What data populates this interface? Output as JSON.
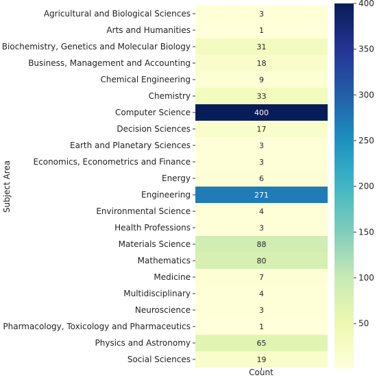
{
  "chart_data": {
    "type": "heatmap",
    "title": "",
    "ylabel": "Subject Area",
    "xlabel": "",
    "column_label": "Count",
    "categories": [
      "Agricultural and Biological Sciences",
      "Arts and Humanities",
      "Biochemistry, Genetics and Molecular Biology",
      "Business, Management and Accounting",
      "Chemical Engineering",
      "Chemistry",
      "Computer Science",
      "Decision Sciences",
      "Earth and Planetary Sciences",
      "Economics, Econometrics and Finance",
      "Energy",
      "Engineering",
      "Environmental Science",
      "Health Professions",
      "Materials Science",
      "Mathematics",
      "Medicine",
      "Multidisciplinary",
      "Neuroscience",
      "Pharmacology, Toxicology and Pharmaceutics",
      "Physics and Astronomy",
      "Social Sciences"
    ],
    "values": [
      3,
      1,
      31,
      18,
      9,
      33,
      400,
      17,
      3,
      3,
      6,
      271,
      4,
      3,
      88,
      80,
      7,
      4,
      3,
      1,
      65,
      19
    ],
    "colorbar": {
      "colormap": "YlGnBu",
      "range": [
        1,
        400
      ],
      "ticks": [
        50,
        100,
        150,
        200,
        250,
        300,
        350,
        400
      ]
    },
    "grid": false,
    "legend": "colorbar-right"
  }
}
